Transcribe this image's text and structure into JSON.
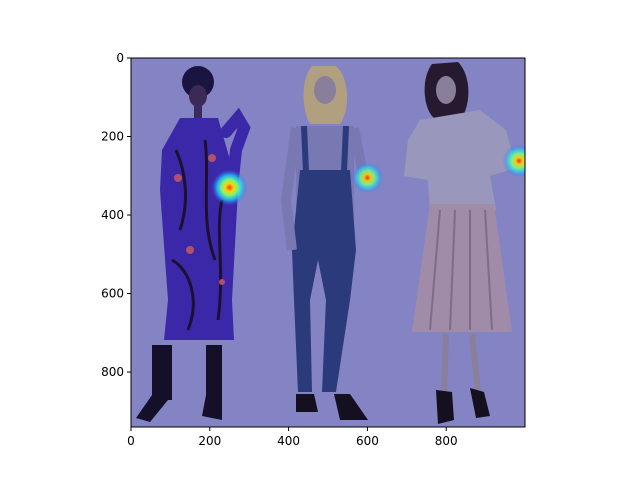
{
  "chart_data": {
    "type": "heatmap",
    "title": "",
    "xlabel": "",
    "ylabel": "",
    "xlim": [
      0,
      1000
    ],
    "ylim": [
      940,
      0
    ],
    "y_inverted": true,
    "grid": false,
    "legend": "none",
    "x_ticks": [
      0,
      200,
      400,
      600,
      800
    ],
    "y_ticks": [
      0,
      200,
      400,
      600,
      800
    ],
    "x_tick_labels": [
      "0",
      "200",
      "400",
      "600",
      "800"
    ],
    "y_tick_labels": [
      "0",
      "200",
      "400",
      "600",
      "800"
    ],
    "background_image": "fashion-photo: three models standing (floral purple dress, denim overalls, grey sweater with pleated skirt)",
    "overlay_color": "#8080c8",
    "hotspots": [
      {
        "x": 250,
        "y": 330,
        "intensity": 1.0
      },
      {
        "x": 600,
        "y": 305,
        "intensity": 0.85
      },
      {
        "x": 985,
        "y": 262,
        "intensity": 0.9
      }
    ]
  }
}
